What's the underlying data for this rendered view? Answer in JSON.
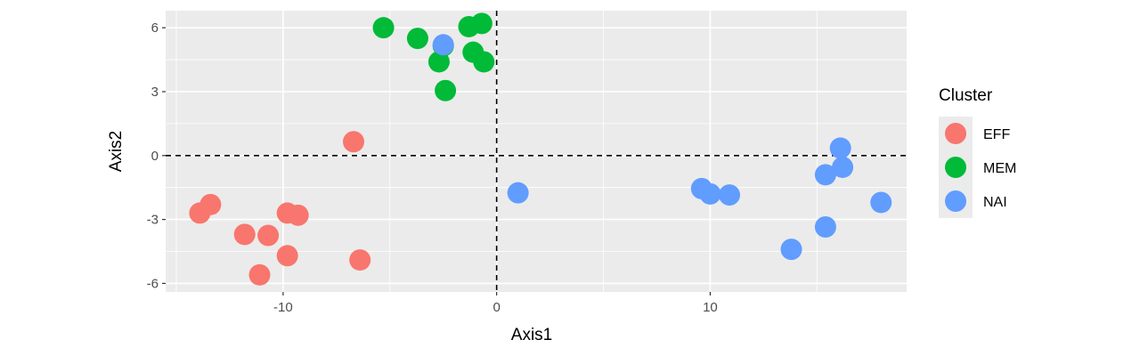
{
  "chart_data": {
    "type": "scatter",
    "xlabel": "Axis1",
    "ylabel": "Axis2",
    "xlim": [
      -15.5,
      19.2
    ],
    "ylim": [
      -6.4,
      6.8
    ],
    "xticks": [
      -10,
      0,
      10
    ],
    "xtick_labels": [
      "-10",
      "0",
      "10"
    ],
    "yticks": [
      -6,
      -3,
      0,
      3,
      6
    ],
    "ytick_labels": [
      "-6",
      "-3",
      "0",
      "3",
      "6"
    ],
    "grid": true,
    "reference_lines": {
      "x": 0,
      "y": 0,
      "style": "dashed"
    },
    "legend": {
      "title": "Cluster",
      "position": "right"
    },
    "series": [
      {
        "name": "EFF",
        "color": "#F8766D",
        "points": [
          [
            -13.9,
            -2.7
          ],
          [
            -13.4,
            -2.3
          ],
          [
            -11.8,
            -3.7
          ],
          [
            -10.7,
            -3.75
          ],
          [
            -9.8,
            -2.7
          ],
          [
            -9.3,
            -2.8
          ],
          [
            -9.8,
            -4.7
          ],
          [
            -11.1,
            -5.6
          ],
          [
            -6.4,
            -4.9
          ],
          [
            -6.7,
            0.65
          ]
        ]
      },
      {
        "name": "MEM",
        "color": "#00BA38",
        "points": [
          [
            -5.3,
            6.0
          ],
          [
            -3.7,
            5.5
          ],
          [
            -1.3,
            6.05
          ],
          [
            -0.7,
            6.2
          ],
          [
            -2.7,
            4.4
          ],
          [
            -2.5,
            5.15
          ],
          [
            -1.1,
            4.85
          ],
          [
            -0.6,
            4.4
          ],
          [
            -2.4,
            3.05
          ]
        ]
      },
      {
        "name": "NAI",
        "color": "#619CFF",
        "points": [
          [
            -2.5,
            5.2
          ],
          [
            1.0,
            -1.75
          ],
          [
            9.6,
            -1.55
          ],
          [
            10.0,
            -1.8
          ],
          [
            10.9,
            -1.85
          ],
          [
            15.4,
            -0.9
          ],
          [
            16.2,
            -0.55
          ],
          [
            16.1,
            0.35
          ],
          [
            18.0,
            -2.2
          ],
          [
            15.4,
            -3.35
          ],
          [
            13.8,
            -4.4
          ]
        ]
      }
    ]
  }
}
